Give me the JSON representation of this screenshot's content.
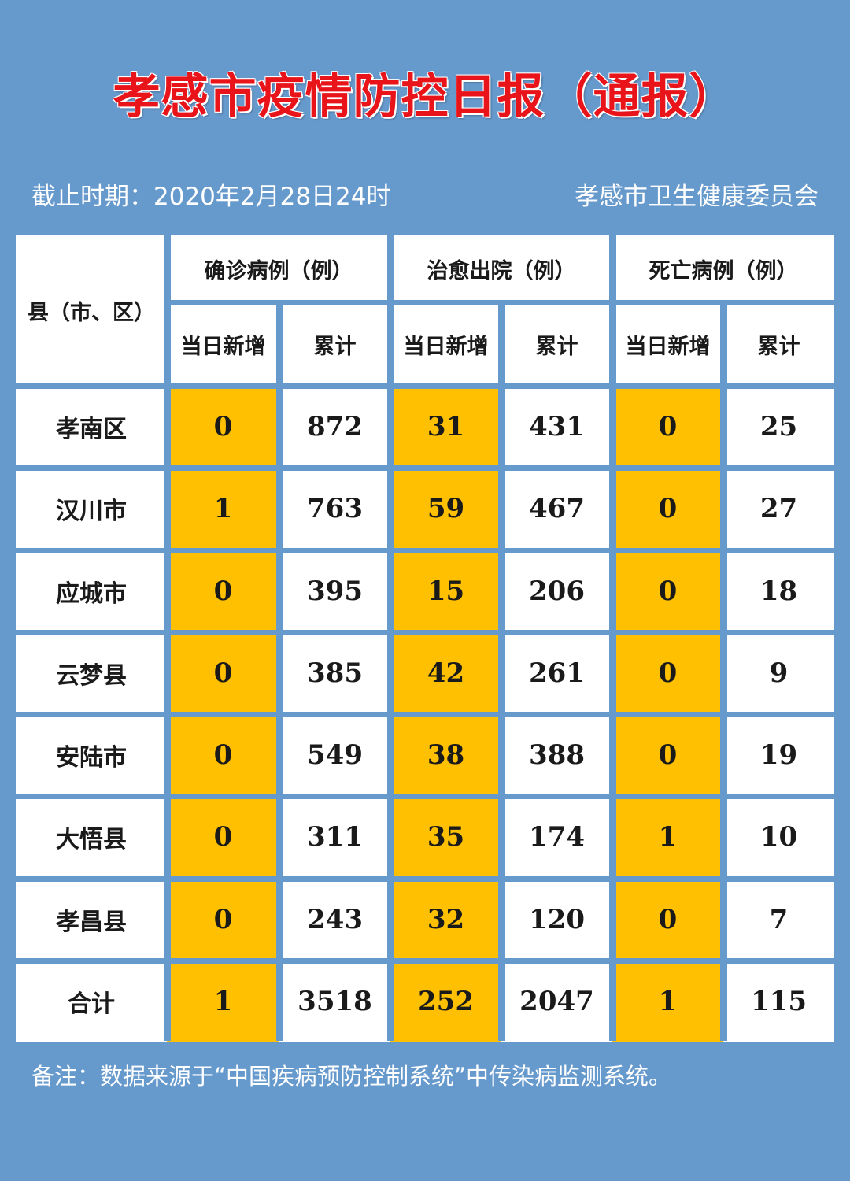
{
  "title": "孝感市疫情防控日报（通报）",
  "cutoff": "截止时期：2020年2月28日24时",
  "issuer": "孝感市卫生健康委员会",
  "table": {
    "region_header": "县（市、区）",
    "groups": [
      {
        "label": "确诊病例（例）"
      },
      {
        "label": "治愈出院（例）"
      },
      {
        "label": "死亡病例（例）"
      }
    ],
    "sub_headers": [
      "当日新增",
      "累计",
      "当日新增",
      "累计",
      "当日新增",
      "累计"
    ],
    "rows": [
      {
        "name": "孝南区",
        "values": [
          "0",
          "872",
          "31",
          "431",
          "0",
          "25"
        ]
      },
      {
        "name": "汉川市",
        "values": [
          "1",
          "763",
          "59",
          "467",
          "0",
          "27"
        ]
      },
      {
        "name": "应城市",
        "values": [
          "0",
          "395",
          "15",
          "206",
          "0",
          "18"
        ]
      },
      {
        "name": "云梦县",
        "values": [
          "0",
          "385",
          "42",
          "261",
          "0",
          "9"
        ]
      },
      {
        "name": "安陆市",
        "values": [
          "0",
          "549",
          "38",
          "388",
          "0",
          "19"
        ]
      },
      {
        "name": "大悟县",
        "values": [
          "0",
          "311",
          "35",
          "174",
          "1",
          "10"
        ]
      },
      {
        "name": "孝昌县",
        "values": [
          "0",
          "243",
          "32",
          "120",
          "0",
          "7"
        ]
      },
      {
        "name": "合计",
        "values": [
          "1",
          "3518",
          "252",
          "2047",
          "1",
          "115"
        ]
      }
    ]
  },
  "note": "备注：数据来源于“中国疾病预防控制系统”中传染病监测系统。",
  "colors": {
    "background": "#6699cc",
    "highlight": "#fec000",
    "title": "#e8141a"
  }
}
